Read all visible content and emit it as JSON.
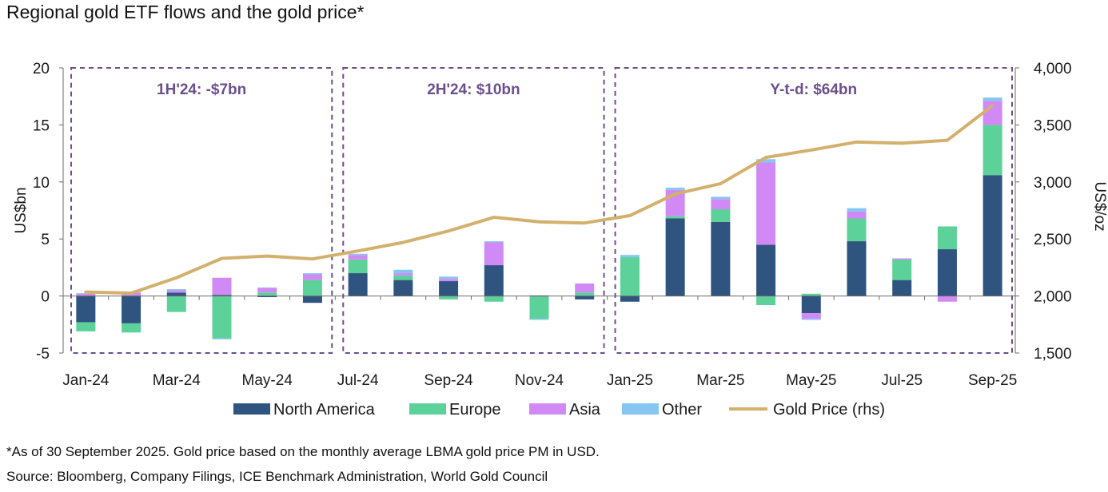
{
  "title": "Regional gold ETF flows and the gold price*",
  "footnote": "*As of 30 September 2025. Gold price based on the monthly average LBMA gold price PM in USD.",
  "source": "Source: Bloomberg, Company Filings, ICE Benchmark Administration, World Gold Council",
  "colors": {
    "north_america": "#2f5480",
    "europe": "#5cd19a",
    "asia": "#d18af5",
    "other": "#86c6f2",
    "gold": "#d3b06c",
    "period_box": "#6b4f8f"
  },
  "chart_data": {
    "type": "bar",
    "stacked": true,
    "title": "Regional gold ETF flows and the gold price*",
    "ylabel": "US$bn",
    "y2label": "US$/oz",
    "ylim": [
      -5,
      20
    ],
    "y2lim": [
      1500,
      4000
    ],
    "yticks": [
      "-5",
      "0",
      "5",
      "10",
      "15",
      "20"
    ],
    "y2ticks": [
      "1,500",
      "2,000",
      "2,500",
      "3,000",
      "3,500",
      "4,000"
    ],
    "categories": [
      "Jan-24",
      "Feb-24",
      "Mar-24",
      "Apr-24",
      "May-24",
      "Jun-24",
      "Jul-24",
      "Aug-24",
      "Sep-24",
      "Oct-24",
      "Nov-24",
      "Dec-24",
      "Jan-25",
      "Feb-25",
      "Mar-25",
      "Apr-25",
      "May-25",
      "Jun-25",
      "Jul-25",
      "Aug-25",
      "Sep-25"
    ],
    "xtick_labels": [
      "Jan-24",
      "Mar-24",
      "May-24",
      "Jul-24",
      "Sep-24",
      "Nov-24",
      "Jan-25",
      "Mar-25",
      "May-25",
      "Jul-25",
      "Sep-25"
    ],
    "series": [
      {
        "name": "North America",
        "key": "north_america",
        "values": [
          -2.3,
          -2.4,
          0.3,
          0.1,
          -0.1,
          -0.6,
          2.0,
          1.4,
          1.3,
          2.7,
          0.05,
          -0.3,
          -0.5,
          6.8,
          6.5,
          4.5,
          -1.5,
          4.8,
          1.4,
          4.1,
          10.6
        ]
      },
      {
        "name": "Europe",
        "key": "europe",
        "values": [
          -0.8,
          -0.8,
          -1.4,
          -3.7,
          0.3,
          1.4,
          1.2,
          0.4,
          -0.3,
          -0.5,
          -2.0,
          0.3,
          3.4,
          0.2,
          1.1,
          -0.8,
          0.2,
          2.0,
          1.8,
          2.0,
          4.4
        ]
      },
      {
        "name": "Asia",
        "key": "asia",
        "values": [
          0.2,
          0.3,
          0.2,
          1.5,
          0.4,
          0.5,
          0.4,
          0.2,
          0.2,
          2.0,
          0.0,
          0.8,
          0.0,
          2.3,
          0.9,
          7.2,
          -0.5,
          0.6,
          0.1,
          -0.5,
          2.1
        ]
      },
      {
        "name": "Other",
        "key": "other",
        "values": [
          0.05,
          0.05,
          0.1,
          -0.1,
          0.05,
          0.1,
          0.1,
          0.3,
          0.2,
          0.1,
          -0.1,
          0.0,
          0.2,
          0.2,
          0.2,
          0.3,
          -0.1,
          0.3,
          0.0,
          0.0,
          0.3
        ]
      },
      {
        "name": "Gold Price (rhs)",
        "key": "gold",
        "type": "line",
        "axis": "rhs",
        "values": [
          2035,
          2025,
          2160,
          2330,
          2350,
          2325,
          2395,
          2470,
          2570,
          2690,
          2650,
          2640,
          2705,
          2895,
          2985,
          3215,
          3280,
          3350,
          3340,
          3365,
          3670
        ]
      }
    ],
    "periods": [
      {
        "label": "1H'24: -$7bn",
        "start": "Jan-24",
        "end": "Jun-24"
      },
      {
        "label": "2H'24: $10bn",
        "start": "Jul-24",
        "end": "Dec-24"
      },
      {
        "label": "Y-t-d: $64bn",
        "start": "Jan-25",
        "end": "Sep-25"
      }
    ],
    "legend": [
      "North America",
      "Europe",
      "Asia",
      "Other",
      "Gold Price (rhs)"
    ],
    "legend_position": "bottom"
  }
}
